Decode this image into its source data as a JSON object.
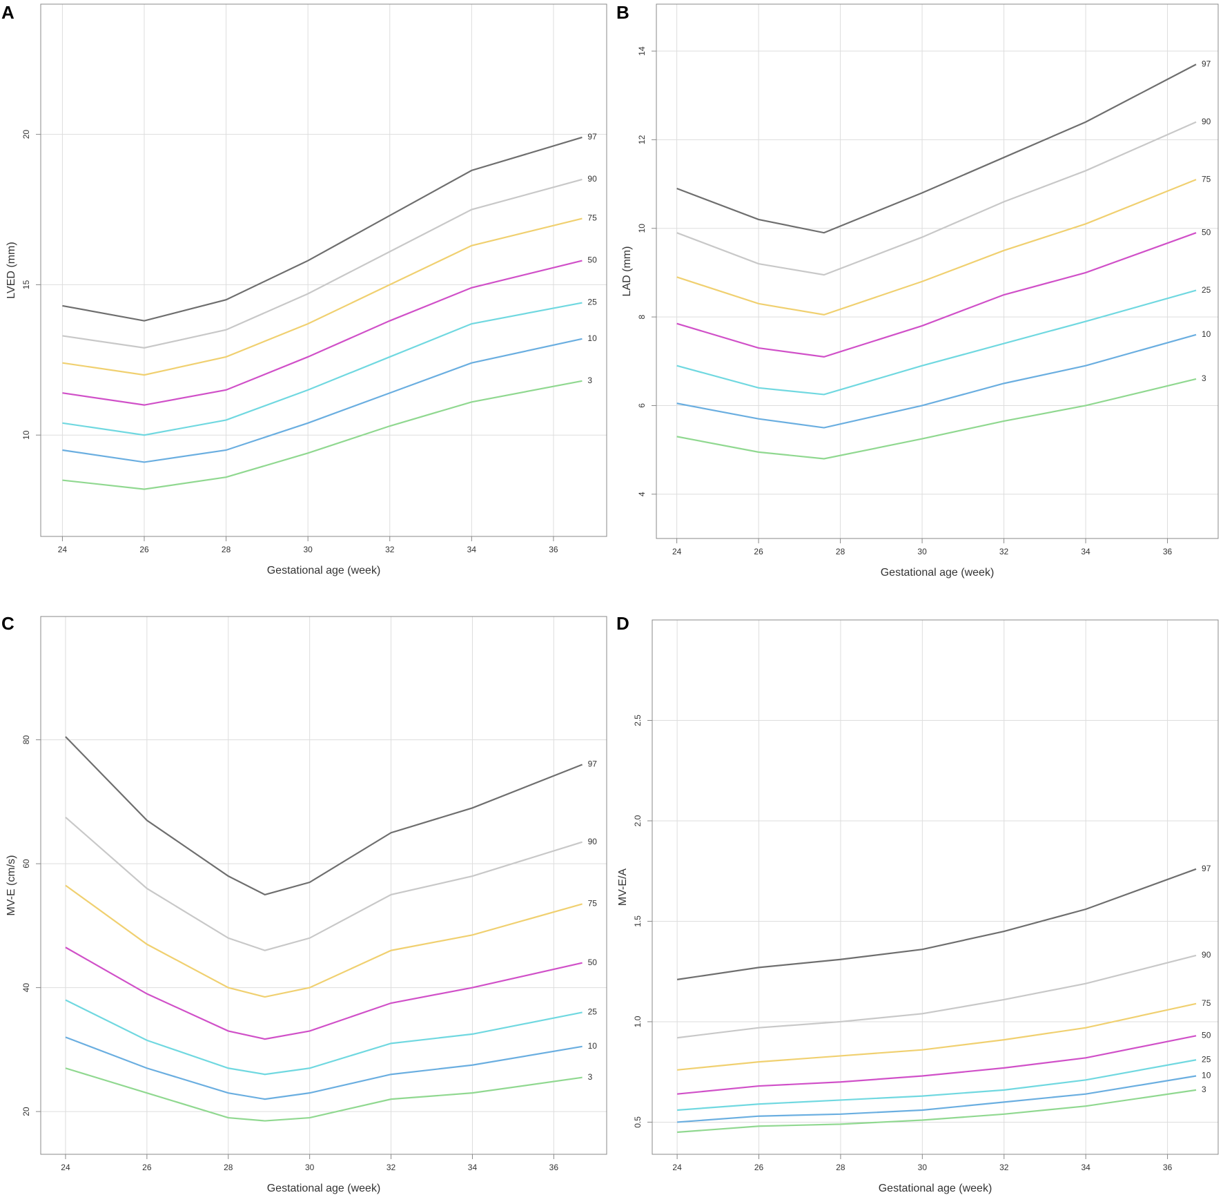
{
  "chart_data": [
    {
      "type": "line",
      "panel": "A",
      "x_label": "Gestational age (week)",
      "y_label": "LVED (mm)",
      "xlim": [
        23.47,
        37.3
      ],
      "ylim": [
        6.63,
        24.33
      ],
      "xticks": [
        24,
        26,
        28,
        30,
        32,
        34,
        36
      ],
      "yticks": [
        10,
        15,
        20
      ],
      "grid": true,
      "x": [
        24,
        26,
        28,
        30,
        32,
        34,
        36.7
      ],
      "series": [
        {
          "name": "97",
          "color": "#6e6e6e",
          "values": [
            14.3,
            13.8,
            14.5,
            15.8,
            17.3,
            18.8,
            19.9
          ]
        },
        {
          "name": "90",
          "color": "#c8c8c8",
          "values": [
            13.3,
            12.9,
            13.5,
            14.7,
            16.1,
            17.5,
            18.5
          ]
        },
        {
          "name": "75",
          "color": "#f0d070",
          "values": [
            12.4,
            12.0,
            12.6,
            13.7,
            15.0,
            16.3,
            17.2
          ]
        },
        {
          "name": "50",
          "color": "#d050c8",
          "values": [
            11.4,
            11.0,
            11.5,
            12.6,
            13.8,
            14.9,
            15.8
          ]
        },
        {
          "name": "25",
          "color": "#70d8e0",
          "values": [
            10.4,
            10.0,
            10.5,
            11.5,
            12.6,
            13.7,
            14.4
          ]
        },
        {
          "name": "10",
          "color": "#6aaee0",
          "values": [
            9.5,
            9.1,
            9.5,
            10.4,
            11.4,
            12.4,
            13.2
          ]
        },
        {
          "name": "3",
          "color": "#90d890",
          "values": [
            8.5,
            8.2,
            8.6,
            9.4,
            10.3,
            11.1,
            11.8
          ]
        }
      ]
    },
    {
      "type": "line",
      "panel": "B",
      "x_label": "Gestational age (week)",
      "y_label": "LAD (mm)",
      "xlim": [
        23.5,
        37.24
      ],
      "ylim": [
        3.0,
        15.06
      ],
      "xticks": [
        24,
        26,
        28,
        30,
        32,
        34,
        36
      ],
      "yticks": [
        4,
        6,
        8,
        10,
        12,
        14
      ],
      "grid": true,
      "x": [
        24,
        26,
        27.6,
        30,
        32,
        34,
        36.7
      ],
      "series": [
        {
          "name": "97",
          "color": "#6e6e6e",
          "values": [
            10.9,
            10.2,
            9.9,
            10.8,
            11.6,
            12.4,
            13.7
          ]
        },
        {
          "name": "90",
          "color": "#c8c8c8",
          "values": [
            9.9,
            9.2,
            8.95,
            9.8,
            10.6,
            11.3,
            12.4
          ]
        },
        {
          "name": "75",
          "color": "#f0d070",
          "values": [
            8.9,
            8.3,
            8.05,
            8.8,
            9.5,
            10.1,
            11.1
          ]
        },
        {
          "name": "50",
          "color": "#d050c8",
          "values": [
            7.85,
            7.3,
            7.1,
            7.8,
            8.5,
            9.0,
            9.9
          ]
        },
        {
          "name": "25",
          "color": "#70d8e0",
          "values": [
            6.9,
            6.4,
            6.25,
            6.9,
            7.4,
            7.9,
            8.6
          ]
        },
        {
          "name": "10",
          "color": "#6aaee0",
          "values": [
            6.05,
            5.7,
            5.5,
            6.0,
            6.5,
            6.9,
            7.6
          ]
        },
        {
          "name": "3",
          "color": "#90d890",
          "values": [
            5.3,
            4.95,
            4.8,
            5.25,
            5.65,
            6.0,
            6.6
          ]
        }
      ]
    },
    {
      "type": "line",
      "panel": "C",
      "x_label": "Gestational age (week)",
      "y_label": "MV-E (cm/s)",
      "xlim": [
        23.39,
        37.3
      ],
      "ylim": [
        13.1,
        99.9
      ],
      "xticks": [
        24,
        26,
        28,
        30,
        32,
        34,
        36
      ],
      "yticks": [
        20,
        40,
        60,
        80
      ],
      "grid": true,
      "x": [
        24,
        26,
        28,
        28.9,
        30,
        32,
        34,
        36.7
      ],
      "series": [
        {
          "name": "97",
          "color": "#6e6e6e",
          "values": [
            80.5,
            67,
            58,
            55,
            57,
            65,
            69,
            76
          ]
        },
        {
          "name": "90",
          "color": "#c8c8c8",
          "values": [
            67.5,
            56,
            48,
            46,
            48,
            55,
            58,
            63.5
          ]
        },
        {
          "name": "75",
          "color": "#f0d070",
          "values": [
            56.5,
            47,
            40,
            38.5,
            40,
            46,
            48.5,
            53.5
          ]
        },
        {
          "name": "50",
          "color": "#d050c8",
          "values": [
            46.5,
            39,
            33,
            31.7,
            33,
            37.5,
            40,
            44
          ]
        },
        {
          "name": "25",
          "color": "#70d8e0",
          "values": [
            38,
            31.5,
            27,
            26,
            27,
            31,
            32.5,
            36
          ]
        },
        {
          "name": "10",
          "color": "#6aaee0",
          "values": [
            32,
            27,
            23,
            22,
            23,
            26,
            27.5,
            30.5
          ]
        },
        {
          "name": "3",
          "color": "#90d890",
          "values": [
            27,
            23,
            19,
            18.5,
            19,
            22,
            23,
            25.5
          ]
        }
      ]
    },
    {
      "type": "line",
      "panel": "D",
      "x_label": "Gestational age (week)",
      "y_label": "MV-E/A",
      "xlim": [
        23.39,
        37.24
      ],
      "ylim": [
        0.34,
        3.0
      ],
      "xticks": [
        24,
        26,
        28,
        30,
        32,
        34,
        36
      ],
      "yticks": [
        0.5,
        {
          "value": 1,
          "label": "1.0"
        },
        1.5,
        {
          "value": 2,
          "label": "2.0"
        },
        2.5
      ],
      "grid": true,
      "x": [
        24,
        26,
        28,
        30,
        32,
        34,
        36.7
      ],
      "series": [
        {
          "name": "97",
          "color": "#6e6e6e",
          "values": [
            1.21,
            1.27,
            1.31,
            1.36,
            1.45,
            1.56,
            1.76
          ]
        },
        {
          "name": "90",
          "color": "#c8c8c8",
          "values": [
            0.92,
            0.97,
            1.0,
            1.04,
            1.11,
            1.19,
            1.33
          ]
        },
        {
          "name": "75",
          "color": "#f0d070",
          "values": [
            0.76,
            0.8,
            0.83,
            0.86,
            0.91,
            0.97,
            1.09
          ]
        },
        {
          "name": "50",
          "color": "#d050c8",
          "values": [
            0.64,
            0.68,
            0.7,
            0.73,
            0.77,
            0.82,
            0.93
          ]
        },
        {
          "name": "25",
          "color": "#70d8e0",
          "values": [
            0.56,
            0.59,
            0.61,
            0.63,
            0.66,
            0.71,
            0.81
          ]
        },
        {
          "name": "10",
          "color": "#6aaee0",
          "values": [
            0.5,
            0.53,
            0.54,
            0.56,
            0.6,
            0.64,
            0.73
          ]
        },
        {
          "name": "3",
          "color": "#90d890",
          "values": [
            0.45,
            0.48,
            0.49,
            0.51,
            0.54,
            0.58,
            0.66
          ]
        }
      ]
    }
  ]
}
